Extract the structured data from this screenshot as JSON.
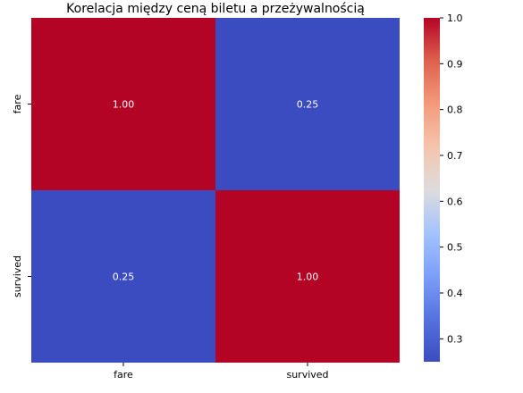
{
  "chart_data": {
    "type": "heatmap",
    "title": "Korelacja między ceną biletu a przeżywalnością",
    "x_labels": [
      "fare",
      "survived"
    ],
    "y_labels": [
      "fare",
      "survived"
    ],
    "values": [
      [
        1.0,
        0.25
      ],
      [
        0.25,
        1.0
      ]
    ],
    "cell_labels": [
      [
        "1.00",
        "0.25"
      ],
      [
        "0.25",
        "1.00"
      ]
    ],
    "colormap": "coolwarm",
    "colorbar": {
      "range": [
        0.25,
        1.0
      ],
      "ticks": [
        0.3,
        0.4,
        0.5,
        0.6,
        0.7,
        0.8,
        0.9,
        1.0
      ],
      "tick_labels": [
        "0.3",
        "0.4",
        "0.5",
        "0.6",
        "0.7",
        "0.8",
        "0.9",
        "1.0"
      ]
    },
    "colors": {
      "high": "#b40426",
      "low": "#3b4cc0",
      "mid": "#dddddd",
      "text": "#ffffff"
    }
  }
}
